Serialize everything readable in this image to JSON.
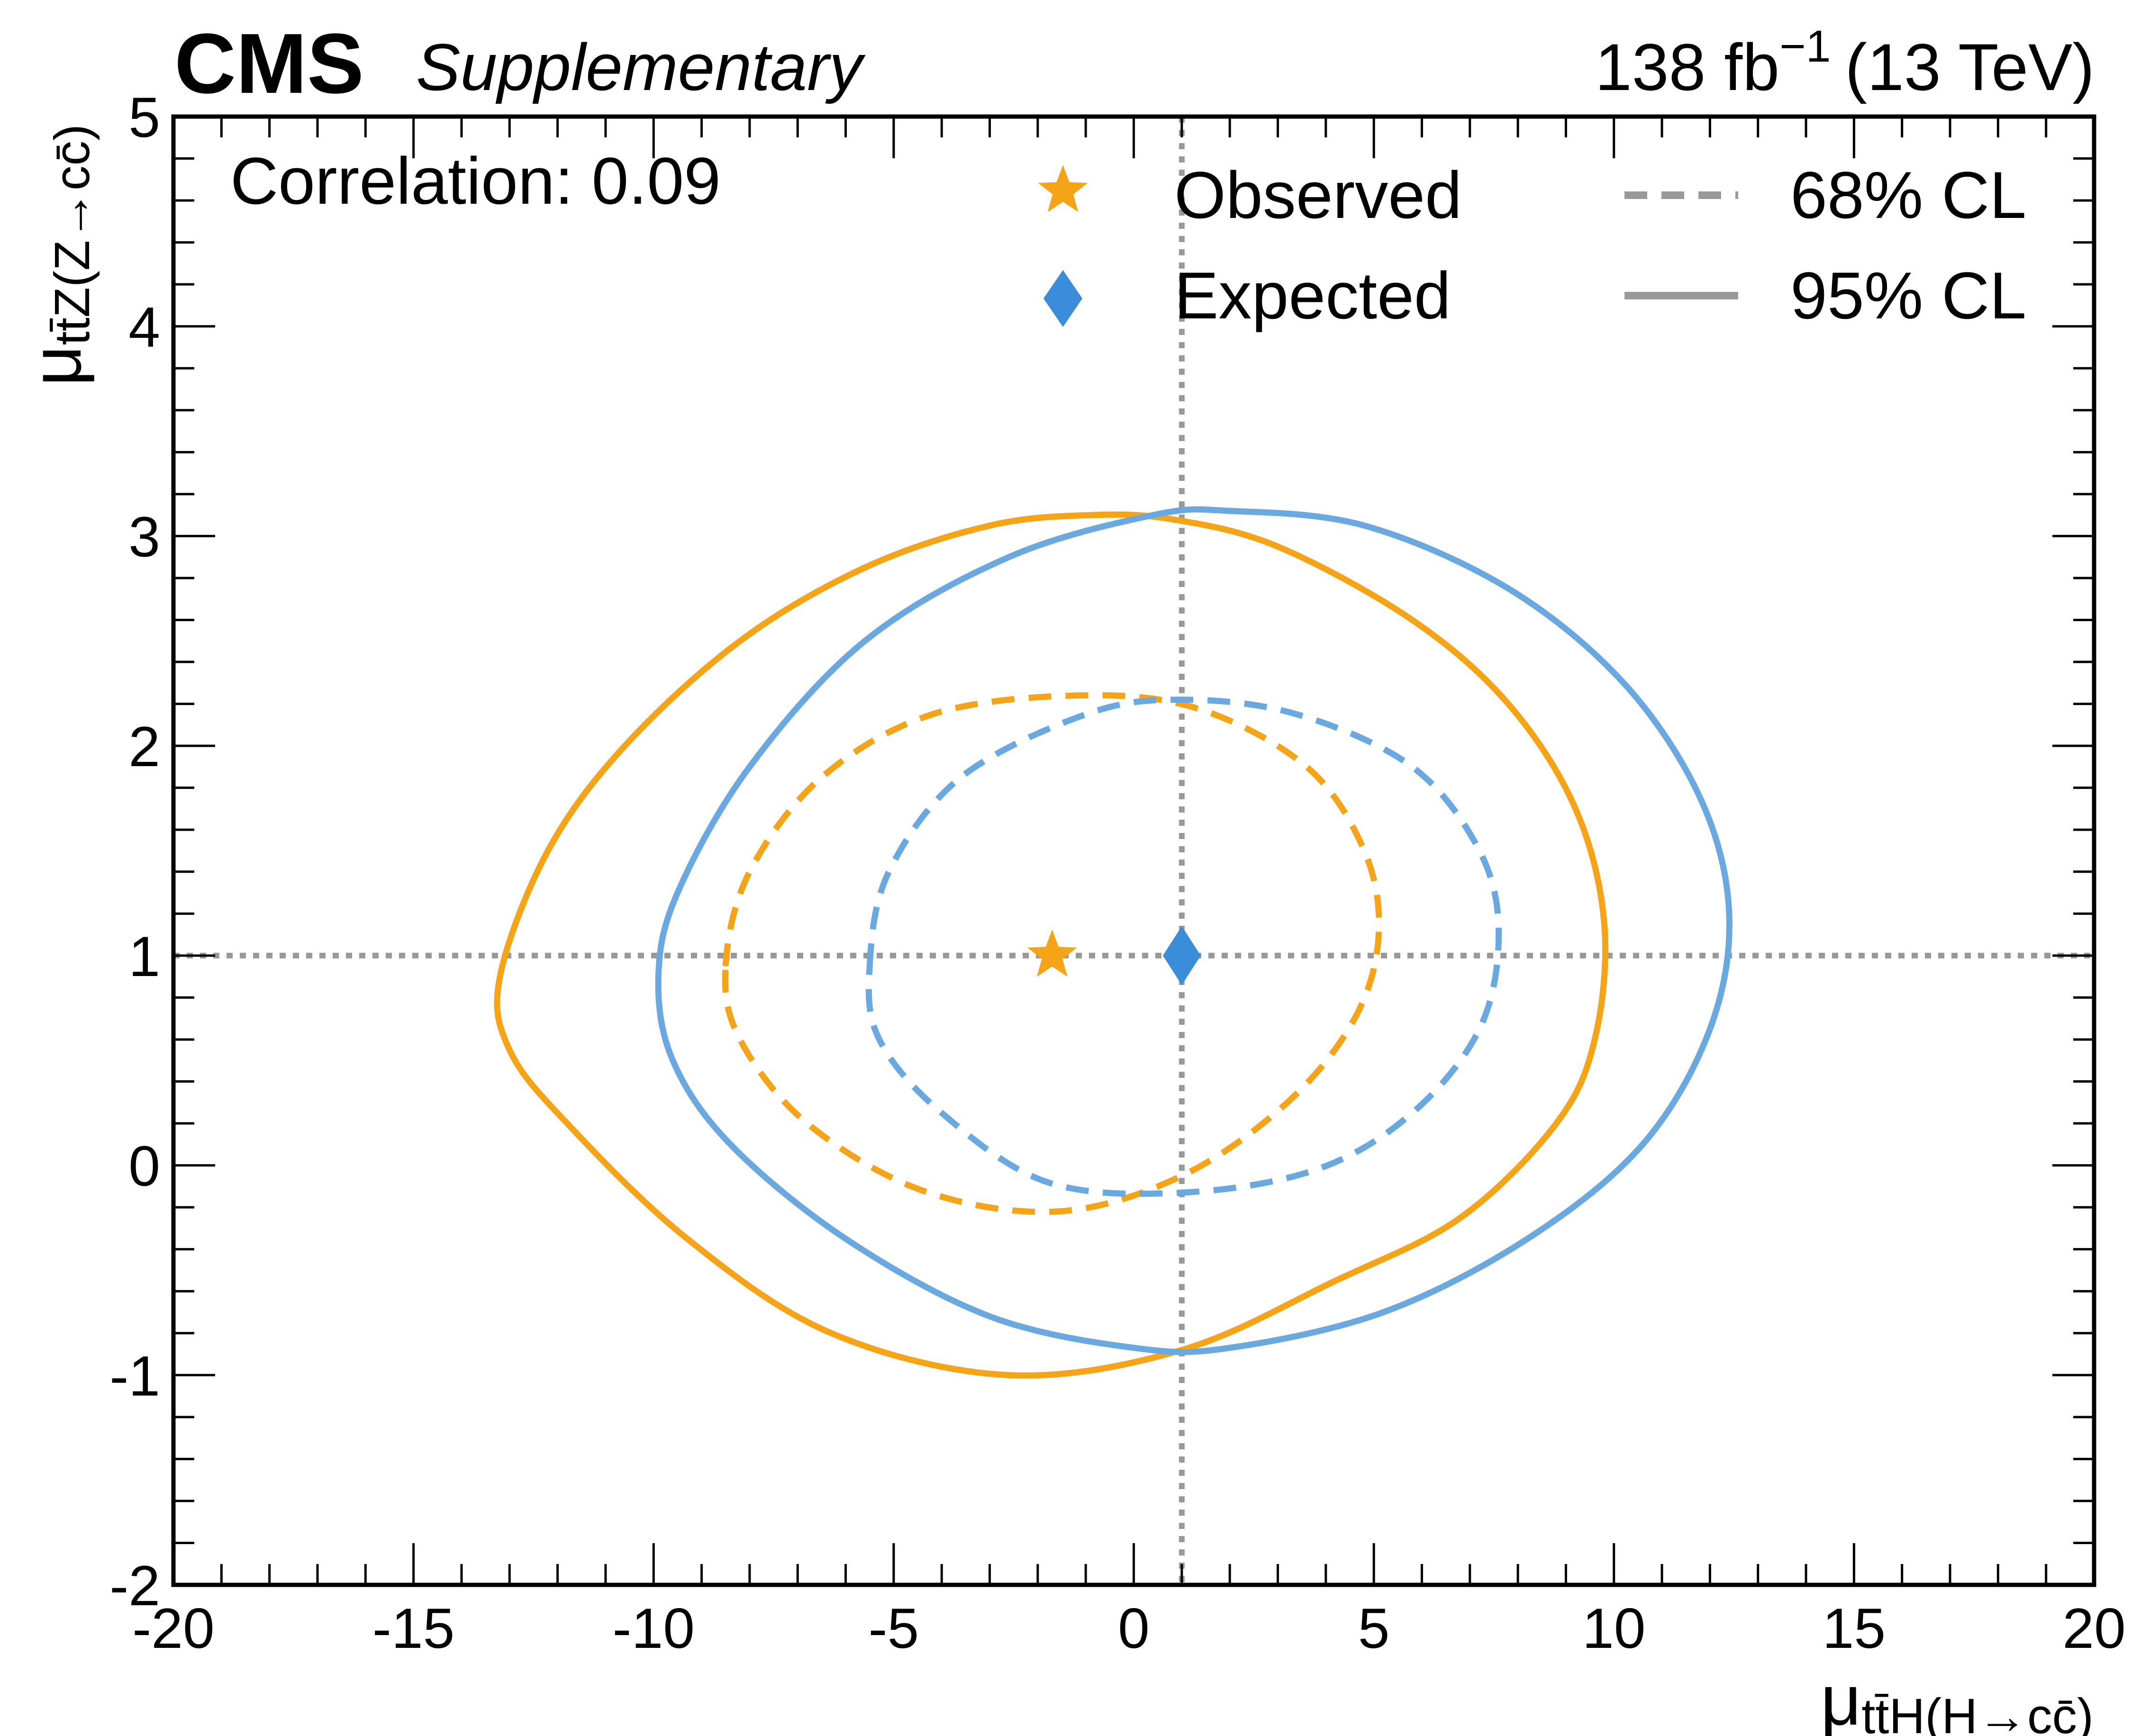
{
  "header": {
    "experiment": "CMS",
    "status": "Supplementary",
    "lumi": "138 fb",
    "lumi_exp": "−1",
    "energy": "(13 TeV)"
  },
  "annotation": "Correlation: 0.09",
  "legend": {
    "observed": "Observed",
    "expected": "Expected",
    "cl68": "68% CL",
    "cl95": "95% CL"
  },
  "axes": {
    "xlabel_mu": "μ",
    "xlabel_sub": "tt̄H(H→cc̄)",
    "ylabel_mu": "μ",
    "ylabel_sub": "tt̄Z(Z→cc̄)"
  },
  "colors": {
    "observed": "#F5A418",
    "expected": "#3C8DD9",
    "expected_contour": "#6AA8E0",
    "reference": "#999999",
    "legend_line": "#9A9A9A"
  },
  "chart_data": {
    "type": "scatter",
    "xlim": [
      -20,
      20
    ],
    "ylim": [
      -2,
      5
    ],
    "xticks": [
      -20,
      -15,
      -10,
      -5,
      0,
      5,
      10,
      15,
      20
    ],
    "yticks": [
      -2,
      -1,
      0,
      1,
      2,
      3,
      4,
      5
    ],
    "xtick_labels": [
      "-20",
      "-15",
      "-10",
      "-5",
      "0",
      "5",
      "10",
      "15",
      "20"
    ],
    "ytick_labels": [
      "-2",
      "-1",
      "0",
      "1",
      "2",
      "3",
      "4",
      "5"
    ],
    "reference_lines": {
      "x": 1,
      "y": 1
    },
    "grid": false,
    "legend_position": "top-right",
    "points": [
      {
        "series": "Observed",
        "marker": "star",
        "x": -1.7,
        "y": 1.0
      },
      {
        "series": "Expected",
        "marker": "diamond",
        "x": 1.0,
        "y": 1.0
      }
    ],
    "contours": [
      {
        "series": "Observed",
        "cl": "95% CL",
        "style": "solid",
        "x": [
          -13.2,
          -12.2,
          -10.6,
          -8.2,
          -5.6,
          -3.0,
          -0.9,
          0.8,
          3.0,
          5.8,
          7.8,
          9.2,
          9.8,
          9.6,
          8.8,
          6.8,
          4.2,
          1.0,
          -2.6,
          -6.3,
          -9.3,
          -11.8,
          -13.0
        ],
        "y": [
          0.9,
          1.5,
          2.0,
          2.5,
          2.85,
          3.05,
          3.1,
          3.08,
          2.95,
          2.6,
          2.2,
          1.7,
          1.15,
          0.6,
          0.2,
          -0.25,
          -0.55,
          -0.88,
          -1.0,
          -0.8,
          -0.35,
          0.2,
          0.55
        ]
      },
      {
        "series": "Expected",
        "cl": "95% CL",
        "style": "solid",
        "x": [
          -9.9,
          -9.5,
          -8.0,
          -5.6,
          -2.6,
          0.4,
          2.0,
          4.8,
          7.8,
          10.2,
          11.8,
          12.4,
          12.0,
          10.6,
          8.2,
          5.2,
          2.0,
          0.0,
          -3.0,
          -6.0,
          -8.4,
          -9.6
        ],
        "y": [
          0.9,
          1.3,
          1.9,
          2.5,
          2.9,
          3.1,
          3.12,
          3.05,
          2.75,
          2.3,
          1.75,
          1.2,
          0.65,
          0.1,
          -0.35,
          -0.7,
          -0.87,
          -0.87,
          -0.72,
          -0.35,
          0.1,
          0.5
        ]
      },
      {
        "series": "Observed",
        "cl": "68% CL",
        "style": "dashed",
        "x": [
          -8.5,
          -8.0,
          -6.5,
          -4.2,
          -1.2,
          1.3,
          3.6,
          4.8,
          5.1,
          4.6,
          3.2,
          1.0,
          -1.6,
          -4.4,
          -6.8,
          -8.2
        ],
        "y": [
          0.95,
          1.4,
          1.85,
          2.15,
          2.24,
          2.18,
          1.9,
          1.5,
          1.1,
          0.7,
          0.3,
          -0.05,
          -0.22,
          -0.12,
          0.2,
          0.6
        ]
      },
      {
        "series": "Expected",
        "cl": "68% CL",
        "style": "dashed",
        "x": [
          -5.5,
          -5.1,
          -3.6,
          -1.0,
          1.0,
          3.4,
          5.8,
          7.2,
          7.6,
          7.2,
          5.8,
          3.8,
          1.0,
          -1.8,
          -4.0,
          -5.3
        ],
        "y": [
          0.95,
          1.4,
          1.85,
          2.15,
          2.22,
          2.15,
          1.9,
          1.5,
          1.1,
          0.65,
          0.25,
          -0.02,
          -0.13,
          -0.08,
          0.25,
          0.6
        ]
      }
    ]
  }
}
